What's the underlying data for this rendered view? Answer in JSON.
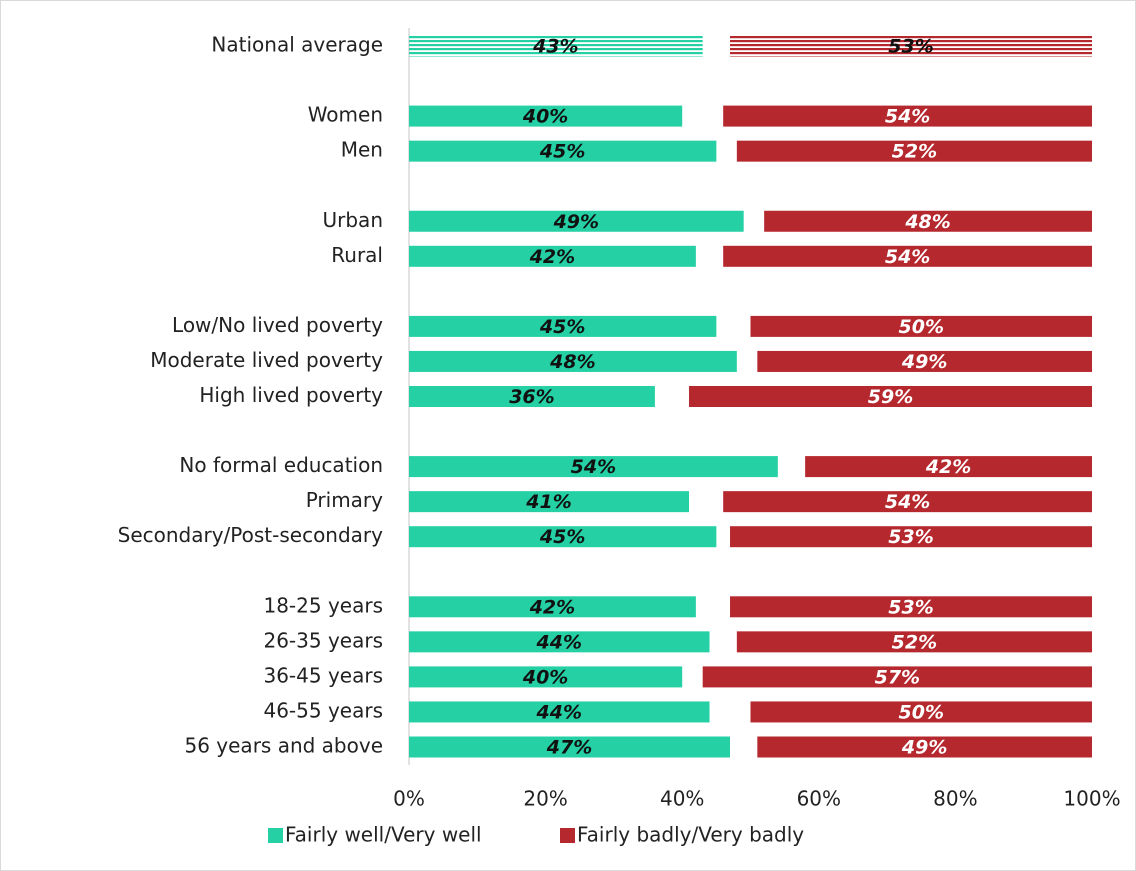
{
  "chart_data": {
    "type": "bar",
    "orientation": "horizontal",
    "categories": [
      "National average",
      null,
      "Women",
      "Men",
      null,
      "Urban",
      "Rural",
      null,
      "Low/No lived poverty",
      "Moderate lived poverty",
      "High lived poverty",
      null,
      "No formal education",
      "Primary",
      "Secondary/Post-secondary",
      null,
      "18-25 years",
      "26-35 years",
      "36-45 years",
      "46-55 years",
      "56 years and above"
    ],
    "series": [
      {
        "name": "Fairly well/Very well",
        "color": "#24d0a4",
        "values": [
          43,
          null,
          40,
          45,
          null,
          49,
          42,
          null,
          45,
          48,
          36,
          null,
          54,
          41,
          45,
          null,
          42,
          44,
          40,
          44,
          47
        ],
        "value_labels": [
          "43%",
          null,
          "40%",
          "45%",
          null,
          "49%",
          "42%",
          null,
          "45%",
          "48%",
          "36%",
          null,
          "54%",
          "41%",
          "45%",
          null,
          "42%",
          "44%",
          "40%",
          "44%",
          "47%"
        ]
      },
      {
        "name": "Fairly badly/Very badly",
        "color": "#b5282e",
        "values": [
          53,
          null,
          54,
          52,
          null,
          48,
          54,
          null,
          50,
          49,
          59,
          null,
          42,
          54,
          53,
          null,
          53,
          52,
          57,
          50,
          49
        ],
        "value_labels": [
          "53%",
          null,
          "54%",
          "52%",
          null,
          "48%",
          "54%",
          null,
          "50%",
          "49%",
          "59%",
          null,
          "42%",
          "54%",
          "53%",
          null,
          "53%",
          "52%",
          "57%",
          "50%",
          "49%"
        ]
      }
    ],
    "xlim": [
      0,
      100
    ],
    "xticks": [
      {
        "value": 0,
        "label": "0%"
      },
      {
        "value": 20,
        "label": "20%"
      },
      {
        "value": 40,
        "label": "40%"
      },
      {
        "value": 60,
        "label": "60%"
      },
      {
        "value": 80,
        "label": "80%"
      },
      {
        "value": 100,
        "label": "100%"
      }
    ],
    "legend": "bottom",
    "grid": false
  }
}
